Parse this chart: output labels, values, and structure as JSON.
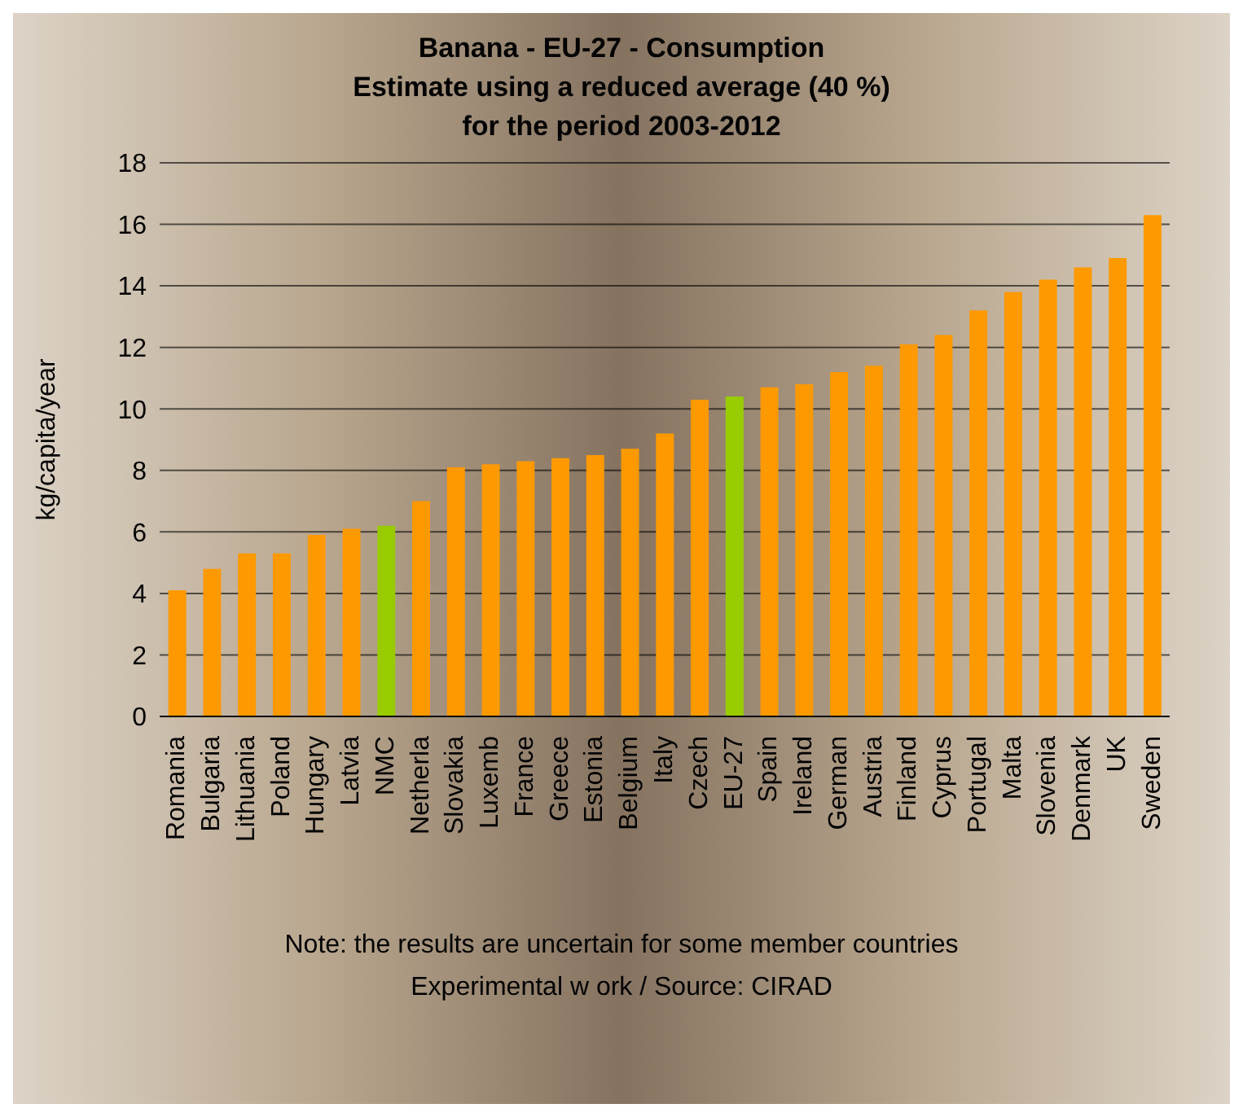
{
  "chart_data": {
    "type": "bar",
    "title": "Banana - EU-27 - Consumption\nEstimate using a reduced average (40 %)\nfor the period 2003-2012",
    "ylabel": "kg/capita/year",
    "categories": [
      "Romania",
      "Bulgaria",
      "Lithuania",
      "Poland",
      "Hungary",
      "Latvia",
      "NMC",
      "Netherla",
      "Slovakia",
      "Luxemb",
      "France",
      "Greece",
      "Estonia",
      "Belgium",
      "Italy",
      "Czech",
      "EU-27",
      "Spain",
      "Ireland",
      "German",
      "Austria",
      "Finland",
      "Cyprus",
      "Portugal",
      "Malta",
      "Slovenia",
      "Denmark",
      "UK",
      "Sweden"
    ],
    "values": [
      4.1,
      4.8,
      5.3,
      5.3,
      5.9,
      6.1,
      6.2,
      7.0,
      8.1,
      8.2,
      8.3,
      8.4,
      8.5,
      8.7,
      9.2,
      10.3,
      10.4,
      10.7,
      10.8,
      11.2,
      11.4,
      12.1,
      12.4,
      13.2,
      13.8,
      14.2,
      14.6,
      14.9,
      16.3
    ],
    "colors": [
      "#ff9900",
      "#ff9900",
      "#ff9900",
      "#ff9900",
      "#ff9900",
      "#ff9900",
      "#99cc00",
      "#ff9900",
      "#ff9900",
      "#ff9900",
      "#ff9900",
      "#ff9900",
      "#ff9900",
      "#ff9900",
      "#ff9900",
      "#ff9900",
      "#99cc00",
      "#ff9900",
      "#ff9900",
      "#ff9900",
      "#ff9900",
      "#ff9900",
      "#ff9900",
      "#ff9900",
      "#ff9900",
      "#ff9900",
      "#ff9900",
      "#ff9900",
      "#ff9900"
    ],
    "ylim": [
      0,
      18
    ],
    "yticks": [
      0,
      2,
      4,
      6,
      8,
      10,
      12,
      14,
      16,
      18
    ],
    "grid": "y",
    "legend": false,
    "annotations": [
      "Note: the results are uncertain for some member countries",
      "Experimental w ork / Source: CIRAD"
    ]
  }
}
